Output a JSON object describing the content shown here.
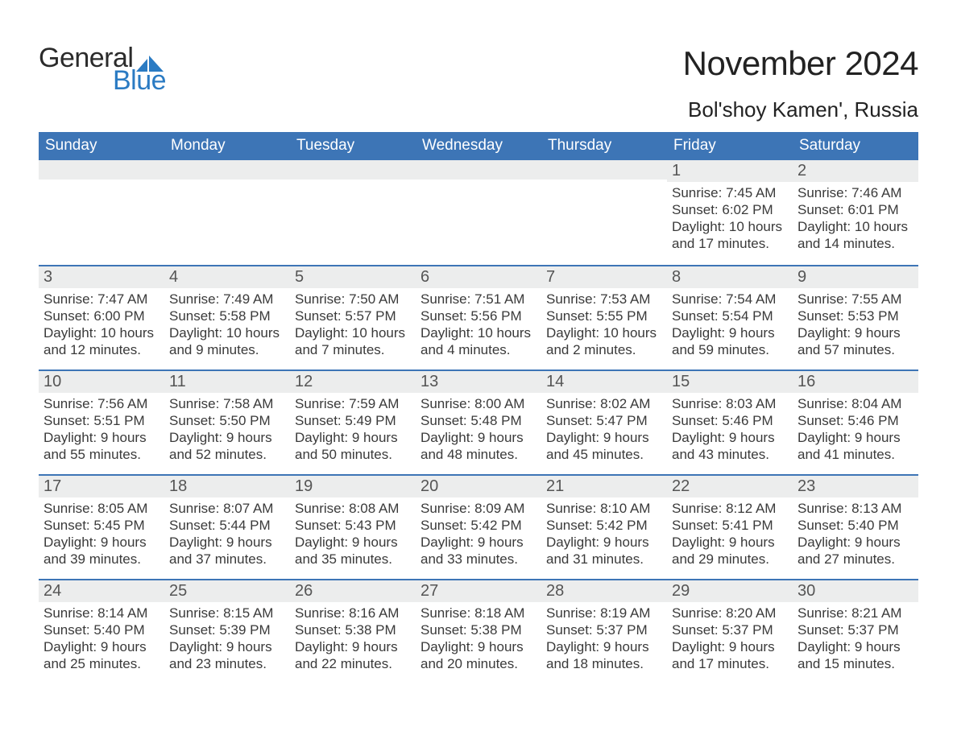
{
  "brand": {
    "word1": "General",
    "word2": "Blue",
    "logo_color": "#2b7bc3",
    "text_color": "#2b2b2b"
  },
  "title": "November 2024",
  "location": "Bol'shoy Kamen', Russia",
  "colors": {
    "header_bg": "#3d75b6",
    "header_text": "#ffffff",
    "daynum_bg": "#eceded",
    "divider": "#3d75b6",
    "background": "#ffffff",
    "body_text": "#333333"
  },
  "typography": {
    "title_fontsize_pt": 32,
    "location_fontsize_pt": 20,
    "weekday_fontsize_pt": 14,
    "cell_fontsize_pt": 13
  },
  "layout": {
    "columns": 7,
    "rows": 5,
    "column_width_pct": 14.2857
  },
  "weekdays": [
    "Sunday",
    "Monday",
    "Tuesday",
    "Wednesday",
    "Thursday",
    "Friday",
    "Saturday"
  ],
  "weeks": [
    [
      null,
      null,
      null,
      null,
      null,
      {
        "n": "1",
        "sunrise": "Sunrise: 7:45 AM",
        "sunset": "Sunset: 6:02 PM",
        "daylight": "Daylight: 10 hours and 17 minutes."
      },
      {
        "n": "2",
        "sunrise": "Sunrise: 7:46 AM",
        "sunset": "Sunset: 6:01 PM",
        "daylight": "Daylight: 10 hours and 14 minutes."
      }
    ],
    [
      {
        "n": "3",
        "sunrise": "Sunrise: 7:47 AM",
        "sunset": "Sunset: 6:00 PM",
        "daylight": "Daylight: 10 hours and 12 minutes."
      },
      {
        "n": "4",
        "sunrise": "Sunrise: 7:49 AM",
        "sunset": "Sunset: 5:58 PM",
        "daylight": "Daylight: 10 hours and 9 minutes."
      },
      {
        "n": "5",
        "sunrise": "Sunrise: 7:50 AM",
        "sunset": "Sunset: 5:57 PM",
        "daylight": "Daylight: 10 hours and 7 minutes."
      },
      {
        "n": "6",
        "sunrise": "Sunrise: 7:51 AM",
        "sunset": "Sunset: 5:56 PM",
        "daylight": "Daylight: 10 hours and 4 minutes."
      },
      {
        "n": "7",
        "sunrise": "Sunrise: 7:53 AM",
        "sunset": "Sunset: 5:55 PM",
        "daylight": "Daylight: 10 hours and 2 minutes."
      },
      {
        "n": "8",
        "sunrise": "Sunrise: 7:54 AM",
        "sunset": "Sunset: 5:54 PM",
        "daylight": "Daylight: 9 hours and 59 minutes."
      },
      {
        "n": "9",
        "sunrise": "Sunrise: 7:55 AM",
        "sunset": "Sunset: 5:53 PM",
        "daylight": "Daylight: 9 hours and 57 minutes."
      }
    ],
    [
      {
        "n": "10",
        "sunrise": "Sunrise: 7:56 AM",
        "sunset": "Sunset: 5:51 PM",
        "daylight": "Daylight: 9 hours and 55 minutes."
      },
      {
        "n": "11",
        "sunrise": "Sunrise: 7:58 AM",
        "sunset": "Sunset: 5:50 PM",
        "daylight": "Daylight: 9 hours and 52 minutes."
      },
      {
        "n": "12",
        "sunrise": "Sunrise: 7:59 AM",
        "sunset": "Sunset: 5:49 PM",
        "daylight": "Daylight: 9 hours and 50 minutes."
      },
      {
        "n": "13",
        "sunrise": "Sunrise: 8:00 AM",
        "sunset": "Sunset: 5:48 PM",
        "daylight": "Daylight: 9 hours and 48 minutes."
      },
      {
        "n": "14",
        "sunrise": "Sunrise: 8:02 AM",
        "sunset": "Sunset: 5:47 PM",
        "daylight": "Daylight: 9 hours and 45 minutes."
      },
      {
        "n": "15",
        "sunrise": "Sunrise: 8:03 AM",
        "sunset": "Sunset: 5:46 PM",
        "daylight": "Daylight: 9 hours and 43 minutes."
      },
      {
        "n": "16",
        "sunrise": "Sunrise: 8:04 AM",
        "sunset": "Sunset: 5:46 PM",
        "daylight": "Daylight: 9 hours and 41 minutes."
      }
    ],
    [
      {
        "n": "17",
        "sunrise": "Sunrise: 8:05 AM",
        "sunset": "Sunset: 5:45 PM",
        "daylight": "Daylight: 9 hours and 39 minutes."
      },
      {
        "n": "18",
        "sunrise": "Sunrise: 8:07 AM",
        "sunset": "Sunset: 5:44 PM",
        "daylight": "Daylight: 9 hours and 37 minutes."
      },
      {
        "n": "19",
        "sunrise": "Sunrise: 8:08 AM",
        "sunset": "Sunset: 5:43 PM",
        "daylight": "Daylight: 9 hours and 35 minutes."
      },
      {
        "n": "20",
        "sunrise": "Sunrise: 8:09 AM",
        "sunset": "Sunset: 5:42 PM",
        "daylight": "Daylight: 9 hours and 33 minutes."
      },
      {
        "n": "21",
        "sunrise": "Sunrise: 8:10 AM",
        "sunset": "Sunset: 5:42 PM",
        "daylight": "Daylight: 9 hours and 31 minutes."
      },
      {
        "n": "22",
        "sunrise": "Sunrise: 8:12 AM",
        "sunset": "Sunset: 5:41 PM",
        "daylight": "Daylight: 9 hours and 29 minutes."
      },
      {
        "n": "23",
        "sunrise": "Sunrise: 8:13 AM",
        "sunset": "Sunset: 5:40 PM",
        "daylight": "Daylight: 9 hours and 27 minutes."
      }
    ],
    [
      {
        "n": "24",
        "sunrise": "Sunrise: 8:14 AM",
        "sunset": "Sunset: 5:40 PM",
        "daylight": "Daylight: 9 hours and 25 minutes."
      },
      {
        "n": "25",
        "sunrise": "Sunrise: 8:15 AM",
        "sunset": "Sunset: 5:39 PM",
        "daylight": "Daylight: 9 hours and 23 minutes."
      },
      {
        "n": "26",
        "sunrise": "Sunrise: 8:16 AM",
        "sunset": "Sunset: 5:38 PM",
        "daylight": "Daylight: 9 hours and 22 minutes."
      },
      {
        "n": "27",
        "sunrise": "Sunrise: 8:18 AM",
        "sunset": "Sunset: 5:38 PM",
        "daylight": "Daylight: 9 hours and 20 minutes."
      },
      {
        "n": "28",
        "sunrise": "Sunrise: 8:19 AM",
        "sunset": "Sunset: 5:37 PM",
        "daylight": "Daylight: 9 hours and 18 minutes."
      },
      {
        "n": "29",
        "sunrise": "Sunrise: 8:20 AM",
        "sunset": "Sunset: 5:37 PM",
        "daylight": "Daylight: 9 hours and 17 minutes."
      },
      {
        "n": "30",
        "sunrise": "Sunrise: 8:21 AM",
        "sunset": "Sunset: 5:37 PM",
        "daylight": "Daylight: 9 hours and 15 minutes."
      }
    ]
  ]
}
